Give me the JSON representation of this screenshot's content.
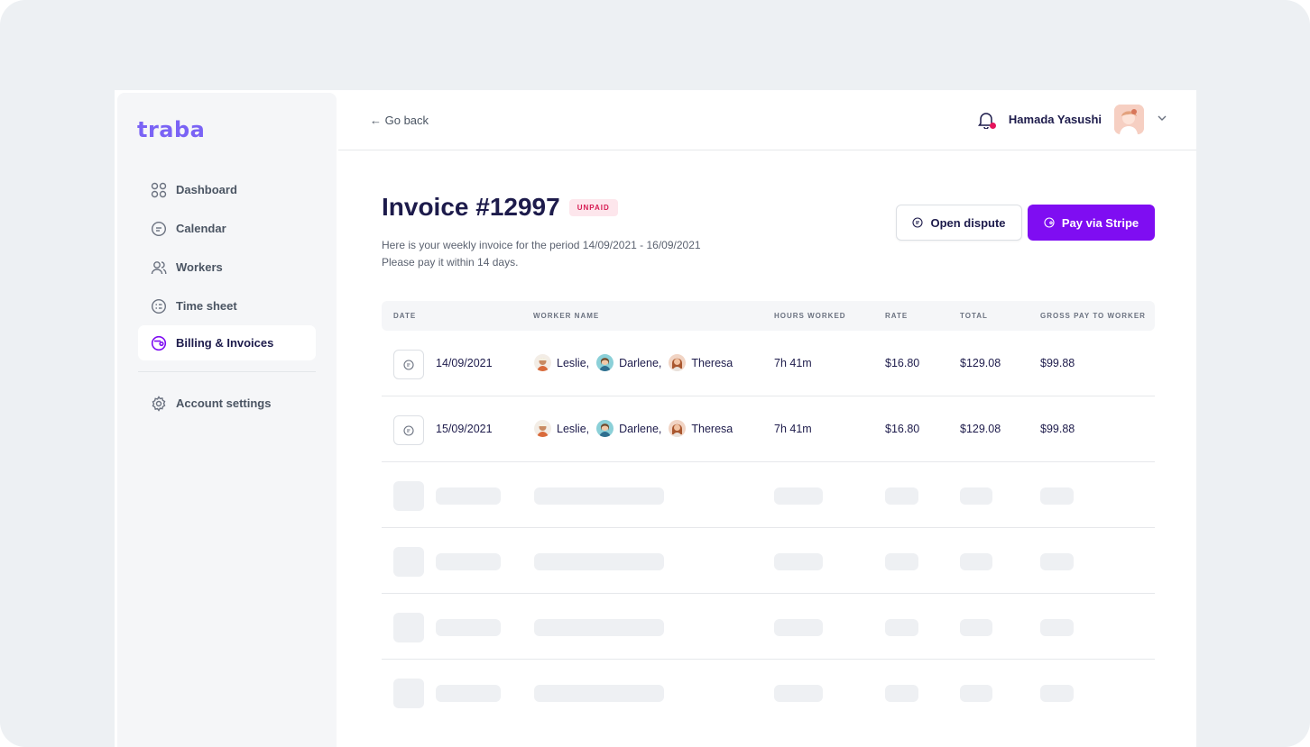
{
  "brand": {
    "logo_text": "traba",
    "accent": "#7a63f5",
    "primary": "#7f0df2"
  },
  "sidebar": {
    "items": [
      {
        "label": "Dashboard",
        "icon": "grid-icon",
        "active": false
      },
      {
        "label": "Calendar",
        "icon": "calendar-icon",
        "active": false
      },
      {
        "label": "Workers",
        "icon": "users-icon",
        "active": false
      },
      {
        "label": "Time sheet",
        "icon": "timesheet-icon",
        "active": false
      },
      {
        "label": "Billing & Invoices",
        "icon": "wallet-icon",
        "active": true
      }
    ],
    "settings": {
      "label": "Account settings",
      "icon": "gear-icon"
    }
  },
  "topbar": {
    "go_back": "← Go back",
    "user_name": "Hamada Yasushi",
    "icons": [
      "bell-icon",
      "chevron-down-icon"
    ]
  },
  "invoice": {
    "title": "Invoice #12997",
    "status": "UNPAID",
    "description_line1": "Here is your weekly invoice for the period 14/09/2021 - 16/09/2021",
    "description_line2": "Please pay it within 14 days.",
    "dispute_label": "Open dispute",
    "pay_label": "Pay via Stripe"
  },
  "table": {
    "headers": [
      "DATE",
      "WORKER NAME",
      "HOURS WORKED",
      "RATE",
      "TOTAL",
      "GROSS PAY TO WORKER"
    ],
    "rows": [
      {
        "date": "14/09/2021",
        "workers": [
          "Leslie,",
          "Darlene,",
          "Theresa"
        ],
        "hours": "7h 41m",
        "rate": "$16.80",
        "total": "$129.08",
        "gross": "$99.88"
      },
      {
        "date": "15/09/2021",
        "workers": [
          "Leslie,",
          "Darlene,",
          "Theresa"
        ],
        "hours": "7h 41m",
        "rate": "$16.80",
        "total": "$129.08",
        "gross": "$99.88"
      }
    ],
    "skeleton_rows": 4
  }
}
